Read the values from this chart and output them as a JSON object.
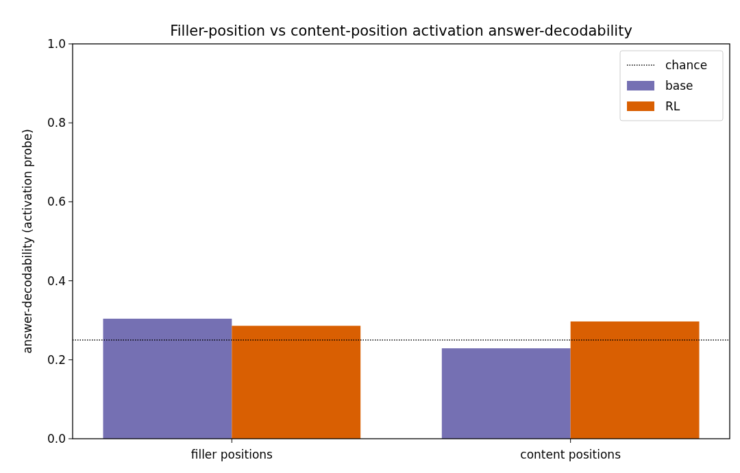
{
  "chart_data": {
    "type": "bar",
    "title": "Filler-position vs content-position activation answer-decodability",
    "ylabel": "answer-decodability (activation probe)",
    "categories": [
      "filler positions",
      "content positions"
    ],
    "series": [
      {
        "name": "base",
        "color": "#7570b3",
        "values": [
          0.304,
          0.229
        ]
      },
      {
        "name": "RL",
        "color": "#d95f02",
        "values": [
          0.286,
          0.297
        ]
      }
    ],
    "ylim": [
      0,
      1
    ],
    "yticks": [
      {
        "value": 0,
        "label": "0.0"
      },
      {
        "value": 0.2,
        "label": "0.2"
      },
      {
        "value": 0.4,
        "label": "0.4"
      },
      {
        "value": 0.6,
        "label": "0.6"
      },
      {
        "value": 0.8,
        "label": "0.8"
      },
      {
        "value": 1,
        "label": "1.0"
      }
    ],
    "ref_lines": [
      {
        "axis": "y",
        "value": 0.25,
        "label": "chance",
        "color": "#000000",
        "line_style": "dotted"
      }
    ],
    "legend": "top right",
    "grid": false
  }
}
